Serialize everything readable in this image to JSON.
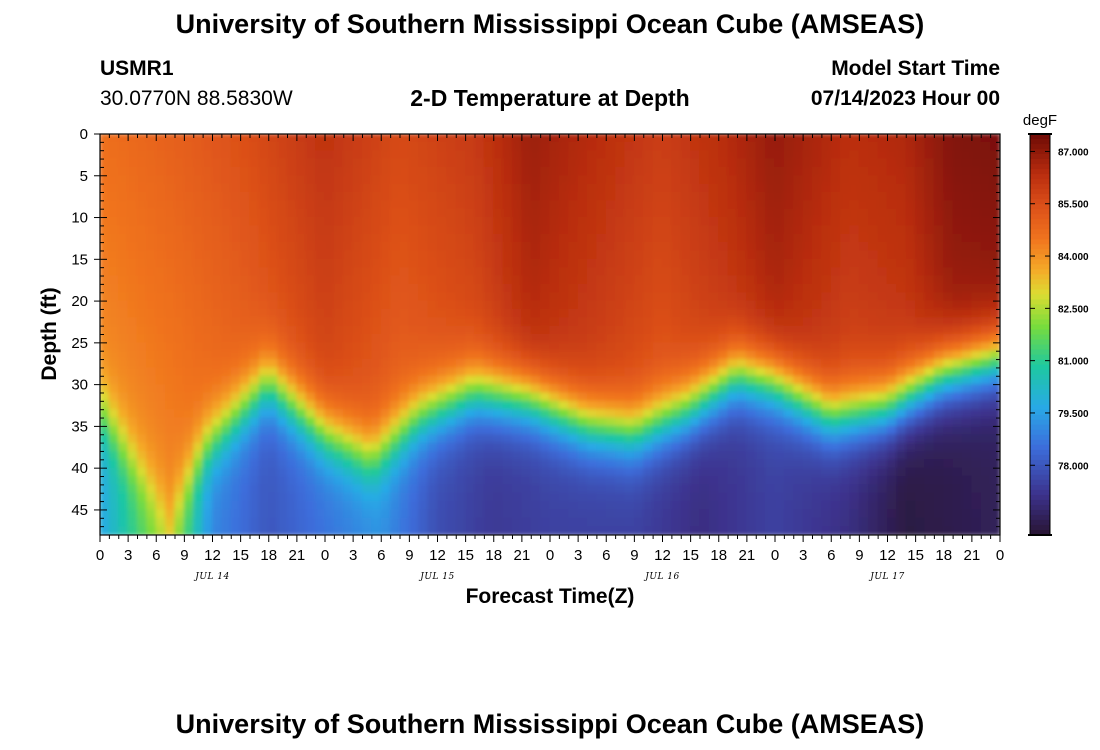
{
  "header": {
    "title": "University of Southern Mississippi Ocean Cube (AMSEAS)",
    "station_id": "USMR1",
    "coords": "30.0770N  88.5830W",
    "plot_title": "2-D Temperature at Depth",
    "model_label": "Model Start Time",
    "model_time": "07/14/2023 Hour 00"
  },
  "footer": {
    "title": "University of Southern Mississippi Ocean Cube (AMSEAS)"
  },
  "chart_data": {
    "type": "heatmap",
    "title": "2-D Temperature at Depth",
    "xlabel": "Forecast Time(Z)",
    "ylabel": "Depth (ft)",
    "x_range_hours": [
      0,
      96
    ],
    "y_range_ft": [
      0,
      48
    ],
    "y_ticks": [
      0,
      5,
      10,
      15,
      20,
      25,
      30,
      35,
      40,
      45
    ],
    "y_tick_labels": [
      "0",
      "5",
      "10",
      "15",
      "20",
      "25",
      "30",
      "35",
      "40",
      "45"
    ],
    "x_ticks_hours": [
      0,
      3,
      6,
      9,
      12,
      15,
      18,
      21,
      24,
      27,
      30,
      33,
      36,
      39,
      42,
      45,
      48,
      51,
      54,
      57,
      60,
      63,
      66,
      69,
      72,
      75,
      78,
      81,
      84,
      87,
      90,
      93,
      96
    ],
    "x_tick_labels": [
      "0",
      "3",
      "6",
      "9",
      "12",
      "15",
      "18",
      "21",
      "0",
      "3",
      "6",
      "9",
      "12",
      "15",
      "18",
      "21",
      "0",
      "3",
      "6",
      "9",
      "12",
      "15",
      "18",
      "21",
      "0",
      "3",
      "6",
      "9",
      "12",
      "15",
      "18",
      "21",
      "0"
    ],
    "date_labels": [
      {
        "hour": 12,
        "text": "JUL 14"
      },
      {
        "hour": 36,
        "text": "JUL 15"
      },
      {
        "hour": 60,
        "text": "JUL 16"
      },
      {
        "hour": 84,
        "text": "JUL 17"
      }
    ],
    "colorbar": {
      "units": "degF",
      "min": 76.0,
      "max": 87.5,
      "ticks": [
        87.0,
        85.5,
        84.0,
        82.5,
        81.0,
        79.5,
        78.0
      ],
      "tick_labels": [
        "87.000",
        "85.500",
        "84.000",
        "82.500",
        "81.000",
        "79.500",
        "78.000"
      ]
    },
    "thermocline_depth_ft": [
      {
        "hour": 0,
        "depth": 33
      },
      {
        "hour": 4,
        "depth": 40
      },
      {
        "hour": 7.5,
        "depth": 46
      },
      {
        "hour": 11,
        "depth": 38
      },
      {
        "hour": 18,
        "depth": 30
      },
      {
        "hour": 24,
        "depth": 36
      },
      {
        "hour": 29,
        "depth": 39
      },
      {
        "hour": 34,
        "depth": 34
      },
      {
        "hour": 40,
        "depth": 31
      },
      {
        "hour": 46,
        "depth": 32
      },
      {
        "hour": 52,
        "depth": 35
      },
      {
        "hour": 57,
        "depth": 36
      },
      {
        "hour": 63,
        "depth": 33
      },
      {
        "hour": 68,
        "depth": 29
      },
      {
        "hour": 72,
        "depth": 30
      },
      {
        "hour": 78,
        "depth": 34
      },
      {
        "hour": 84,
        "depth": 33
      },
      {
        "hour": 90,
        "depth": 29
      },
      {
        "hour": 96,
        "depth": 27
      }
    ],
    "surface_temp_degF": [
      {
        "hour": 0,
        "value": 84.6
      },
      {
        "hour": 8,
        "value": 85.0
      },
      {
        "hour": 16,
        "value": 85.5
      },
      {
        "hour": 24,
        "value": 86.2
      },
      {
        "hour": 32,
        "value": 85.6
      },
      {
        "hour": 40,
        "value": 86.0
      },
      {
        "hour": 46,
        "value": 86.8
      },
      {
        "hour": 54,
        "value": 86.3
      },
      {
        "hour": 60,
        "value": 85.9
      },
      {
        "hour": 67,
        "value": 86.4
      },
      {
        "hour": 72,
        "value": 86.9
      },
      {
        "hour": 80,
        "value": 86.3
      },
      {
        "hour": 86,
        "value": 86.5
      },
      {
        "hour": 91,
        "value": 87.2
      },
      {
        "hour": 96,
        "value": 87.3
      }
    ],
    "bottom_temp_degF": [
      {
        "hour": 0,
        "value": 79.6
      },
      {
        "hour": 7.5,
        "value": 82.6
      },
      {
        "hour": 12,
        "value": 79.0
      },
      {
        "hour": 18,
        "value": 78.0
      },
      {
        "hour": 24,
        "value": 78.6
      },
      {
        "hour": 30,
        "value": 79.2
      },
      {
        "hour": 36,
        "value": 77.8
      },
      {
        "hour": 42,
        "value": 77.3
      },
      {
        "hour": 48,
        "value": 77.5
      },
      {
        "hour": 57,
        "value": 77.5
      },
      {
        "hour": 64,
        "value": 77.0
      },
      {
        "hour": 72,
        "value": 77.5
      },
      {
        "hour": 80,
        "value": 77.0
      },
      {
        "hour": 86,
        "value": 76.2
      },
      {
        "hour": 96,
        "value": 76.5
      }
    ]
  }
}
